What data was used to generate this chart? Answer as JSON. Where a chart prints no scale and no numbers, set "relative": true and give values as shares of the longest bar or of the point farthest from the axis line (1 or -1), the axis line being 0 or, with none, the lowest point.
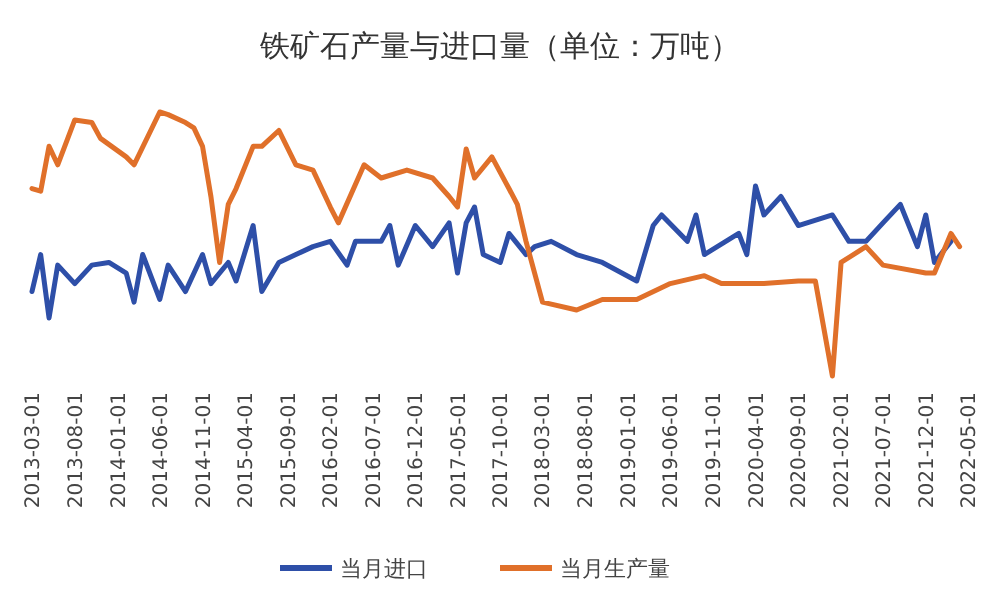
{
  "chart_data": {
    "type": "line",
    "title": "铁矿石产量与进口量（单位：万吨）",
    "relative": true,
    "legend": "bottom",
    "marker": "none",
    "line_style": "solid",
    "xlim": [
      "2013-03-01",
      "2022-05-01"
    ],
    "xticks": [
      "2013-03-01",
      "2013-08-01",
      "2014-01-01",
      "2014-06-01",
      "2014-11-01",
      "2015-04-01",
      "2015-09-01",
      "2016-02-01",
      "2016-07-01",
      "2016-12-01",
      "2017-05-01",
      "2017-10-01",
      "2018-03-01",
      "2018-08-01",
      "2019-01-01",
      "2019-06-01",
      "2019-11-01",
      "2020-04-01",
      "2020-09-01",
      "2021-02-01",
      "2021-07-01",
      "2021-12-01",
      "2022-05-01"
    ],
    "series": [
      {
        "name": "当月进口",
        "color": "#2e4fa8",
        "x": [
          "2013-03-01",
          "2013-04-01",
          "2013-05-01",
          "2013-06-01",
          "2013-08-01",
          "2013-10-01",
          "2013-12-01",
          "2014-02-01",
          "2014-03-01",
          "2014-04-01",
          "2014-06-01",
          "2014-07-01",
          "2014-09-01",
          "2014-11-01",
          "2014-12-01",
          "2015-02-01",
          "2015-03-01",
          "2015-05-01",
          "2015-06-01",
          "2015-08-01",
          "2015-10-01",
          "2015-12-01",
          "2016-02-01",
          "2016-04-01",
          "2016-05-01",
          "2016-08-01",
          "2016-09-01",
          "2016-10-01",
          "2016-12-01",
          "2017-02-01",
          "2017-04-01",
          "2017-05-01",
          "2017-06-01",
          "2017-07-01",
          "2017-08-01",
          "2017-10-01",
          "2017-11-01",
          "2018-01-01",
          "2018-02-01",
          "2018-04-01",
          "2018-07-01",
          "2018-10-01",
          "2019-02-01",
          "2019-04-01",
          "2019-05-01",
          "2019-08-01",
          "2019-09-01",
          "2019-10-01",
          "2020-02-01",
          "2020-03-01",
          "2020-04-01",
          "2020-05-01",
          "2020-07-01",
          "2020-09-01",
          "2021-01-01",
          "2021-03-01",
          "2021-05-01",
          "2021-07-01",
          "2021-09-01",
          "2021-11-01",
          "2021-12-01",
          "2022-01-01",
          "2022-03-01"
        ],
        "values": [
          0.32,
          0.46,
          0.22,
          0.42,
          0.35,
          0.42,
          0.43,
          0.39,
          0.28,
          0.46,
          0.29,
          0.42,
          0.32,
          0.46,
          0.35,
          0.43,
          0.36,
          0.57,
          0.32,
          0.43,
          0.46,
          0.49,
          0.51,
          0.42,
          0.51,
          0.51,
          0.57,
          0.42,
          0.57,
          0.49,
          0.58,
          0.39,
          0.58,
          0.64,
          0.46,
          0.43,
          0.54,
          0.46,
          0.49,
          0.51,
          0.46,
          0.43,
          0.36,
          0.57,
          0.61,
          0.51,
          0.61,
          0.46,
          0.54,
          0.46,
          0.72,
          0.61,
          0.68,
          0.57,
          0.61,
          0.51,
          0.51,
          0.58,
          0.65,
          0.49,
          0.61,
          0.43,
          0.51
        ]
      },
      {
        "name": "当月生产量",
        "color": "#e0702a",
        "x": [
          "2013-03-01",
          "2013-04-01",
          "2013-05-01",
          "2013-06-01",
          "2013-08-01",
          "2013-10-01",
          "2013-11-01",
          "2014-02-01",
          "2014-03-01",
          "2014-06-01",
          "2014-07-01",
          "2014-09-01",
          "2014-10-01",
          "2014-11-01",
          "2014-12-01",
          "2015-01-01",
          "2015-02-01",
          "2015-03-01",
          "2015-05-01",
          "2015-06-01",
          "2015-08-01",
          "2015-10-01",
          "2015-12-01",
          "2016-02-01",
          "2016-03-01",
          "2016-06-01",
          "2016-08-01",
          "2016-11-01",
          "2017-02-01",
          "2017-04-01",
          "2017-05-01",
          "2017-06-01",
          "2017-07-01",
          "2017-09-01",
          "2017-11-01",
          "2017-12-01",
          "2018-01-01",
          "2018-03-01",
          "2018-07-01",
          "2018-10-01",
          "2019-02-01",
          "2019-06-01",
          "2019-10-01",
          "2019-12-01",
          "2020-05-01",
          "2020-09-01",
          "2020-11-01",
          "2021-01-01",
          "2021-02-01",
          "2021-05-01",
          "2021-07-01",
          "2021-12-01",
          "2022-01-01",
          "2022-03-01",
          "2022-04-01"
        ],
        "values": [
          0.71,
          0.7,
          0.87,
          0.8,
          0.97,
          0.96,
          0.9,
          0.83,
          0.8,
          1,
          0.99,
          0.96,
          0.94,
          0.87,
          0.68,
          0.43,
          0.65,
          0.71,
          0.87,
          0.87,
          0.93,
          0.8,
          0.78,
          0.64,
          0.58,
          0.8,
          0.75,
          0.78,
          0.75,
          0.68,
          0.64,
          0.86,
          0.75,
          0.83,
          0.71,
          0.65,
          0.51,
          0.28,
          0.25,
          0.29,
          0.29,
          0.35,
          0.38,
          0.35,
          0.35,
          0.36,
          0.36,
          0,
          0.43,
          0.49,
          0.42,
          0.39,
          0.39,
          0.54,
          0.49
        ]
      }
    ]
  }
}
